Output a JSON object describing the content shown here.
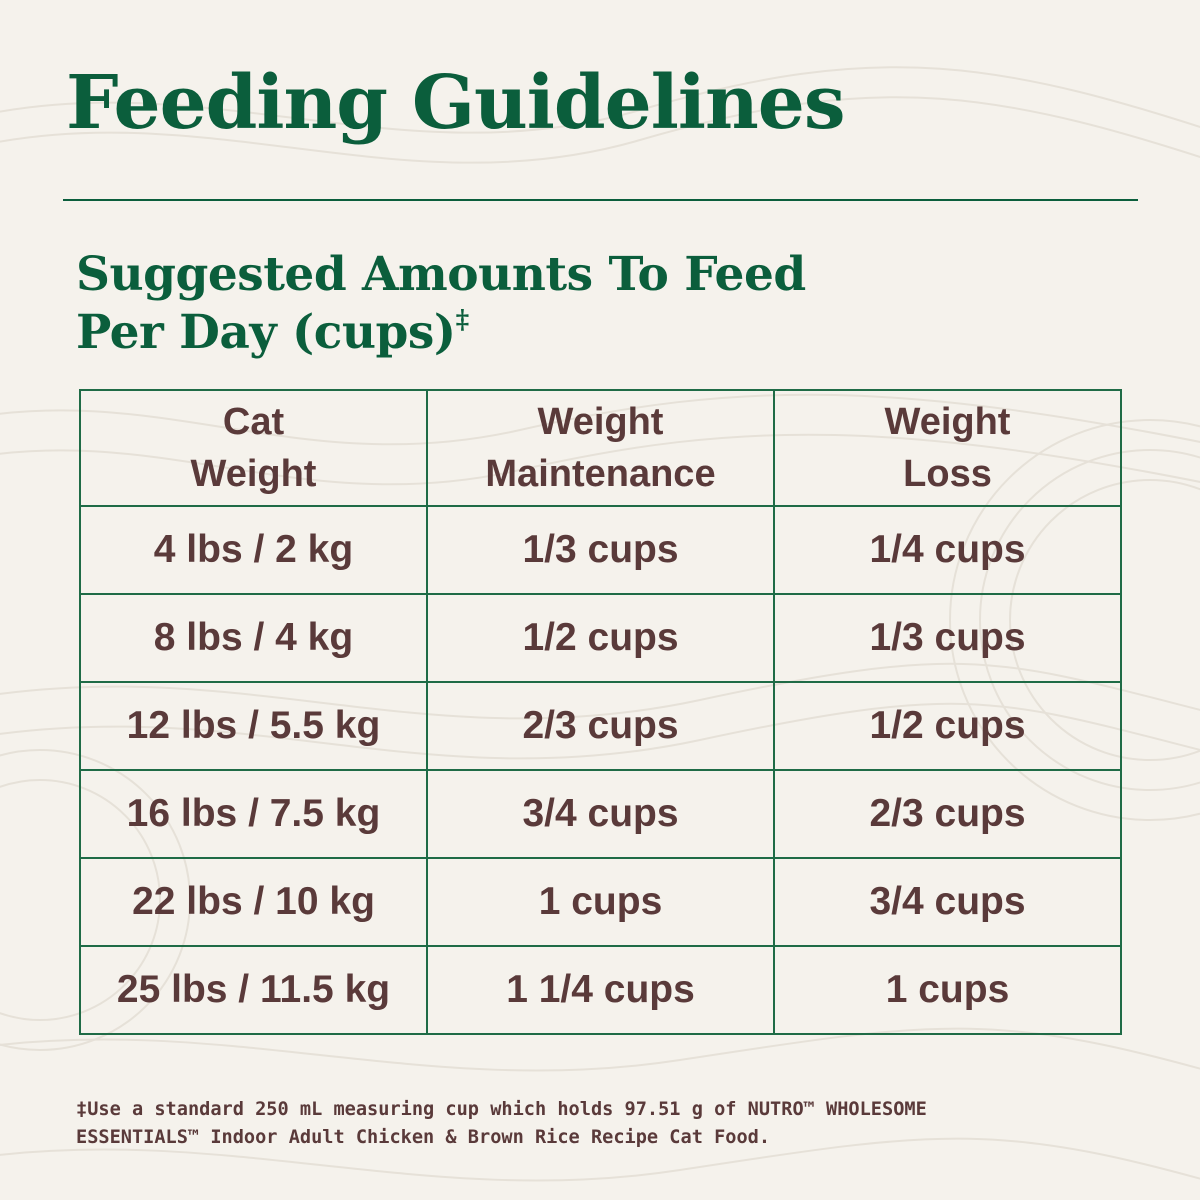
{
  "title": "Feeding Guidelines",
  "subtitle": {
    "line1": "Suggested Amounts To Feed",
    "line2": "Per Day (cups)",
    "mark": "‡"
  },
  "table": {
    "headers": [
      [
        "Cat",
        "Weight"
      ],
      [
        "Weight",
        "Maintenance"
      ],
      [
        "Weight",
        "Loss"
      ]
    ],
    "rows": [
      [
        "4 lbs / 2 kg",
        "1/3 cups",
        "1/4 cups"
      ],
      [
        "8 lbs / 4 kg",
        "1/2 cups",
        "1/3 cups"
      ],
      [
        "12 lbs / 5.5 kg",
        "2/3 cups",
        "1/2 cups"
      ],
      [
        "16 lbs / 7.5 kg",
        "3/4 cups",
        "2/3 cups"
      ],
      [
        "22 lbs / 10 kg",
        "1 cups",
        "3/4 cups"
      ],
      [
        "25 lbs / 11.5 kg",
        "1 1/4 cups",
        "1 cups"
      ]
    ]
  },
  "footnote": {
    "line1": "‡Use a standard 250 mL measuring cup which holds 97.51 g of NUTRO™ WHOLESOME",
    "line2": "ESSENTIALS™ Indoor Adult Chicken & Brown Rice Recipe Cat Food."
  },
  "colors": {
    "background": "#f5f2ec",
    "heading_green": "#0b5e3c",
    "table_border": "#1f6b46",
    "text_brown": "#5a3a3a"
  }
}
